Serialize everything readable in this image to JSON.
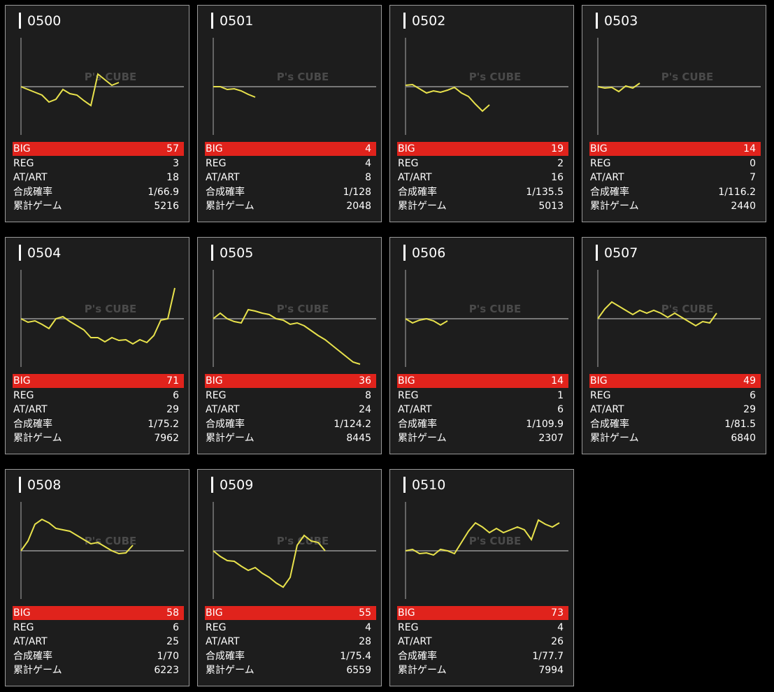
{
  "watermark": "P's CUBE",
  "labels": {
    "big": "BIG",
    "reg": "REG",
    "at": "AT/ART",
    "prob": "合成確率",
    "games": "累計ゲーム"
  },
  "machines": [
    {
      "id": "0500",
      "big": 57,
      "reg": 3,
      "at": 18,
      "prob": "1/66.9",
      "games": 5216,
      "graph": [
        0,
        -4,
        -8,
        -12,
        -22,
        -18,
        -4,
        -10,
        -12,
        -20,
        -27,
        18,
        10,
        2,
        6
      ]
    },
    {
      "id": "0501",
      "big": 4,
      "reg": 4,
      "at": 8,
      "prob": "1/128",
      "games": 2048,
      "graph": [
        0,
        0,
        -4,
        -3,
        -6,
        -11,
        -15
      ]
    },
    {
      "id": "0502",
      "big": 19,
      "reg": 2,
      "at": 16,
      "prob": "1/135.5",
      "games": 5013,
      "graph": [
        2,
        3,
        -3,
        -9,
        -6,
        -8,
        -5,
        -1,
        -9,
        -14,
        -25,
        -35,
        -26
      ]
    },
    {
      "id": "0503",
      "big": 14,
      "reg": 0,
      "at": 7,
      "prob": "1/116.2",
      "games": 2440,
      "graph": [
        0,
        -2,
        -1,
        -7,
        1,
        -2,
        5
      ]
    },
    {
      "id": "0504",
      "big": 71,
      "reg": 6,
      "at": 29,
      "prob": "1/75.2",
      "games": 7962,
      "graph": [
        0,
        -5,
        -3,
        -8,
        -14,
        0,
        3,
        -4,
        -10,
        -16,
        -27,
        -27,
        -33,
        -27,
        -31,
        -30,
        -36,
        -30,
        -34,
        -24,
        -2,
        0,
        44
      ]
    },
    {
      "id": "0505",
      "big": 36,
      "reg": 8,
      "at": 24,
      "prob": "1/124.2",
      "games": 8445,
      "graph": [
        0,
        8,
        0,
        -4,
        -6,
        13,
        11,
        8,
        6,
        0,
        -2,
        -8,
        -6,
        -10,
        -17,
        -24,
        -30,
        -38,
        -46,
        -54,
        -62,
        -65
      ]
    },
    {
      "id": "0506",
      "big": 14,
      "reg": 1,
      "at": 6,
      "prob": "1/109.9",
      "games": 2307,
      "graph": [
        0,
        -6,
        -2,
        0,
        -3,
        -9,
        -3
      ]
    },
    {
      "id": "0507",
      "big": 49,
      "reg": 6,
      "at": 29,
      "prob": "1/81.5",
      "games": 6840,
      "graph": [
        0,
        14,
        24,
        18,
        12,
        6,
        12,
        8,
        12,
        8,
        2,
        8,
        2,
        -4,
        -10,
        -4,
        -6,
        8
      ]
    },
    {
      "id": "0508",
      "big": 58,
      "reg": 6,
      "at": 25,
      "prob": "1/70",
      "games": 6223,
      "graph": [
        0,
        14,
        38,
        45,
        40,
        32,
        30,
        28,
        22,
        16,
        10,
        12,
        6,
        0,
        -4,
        -3,
        8
      ]
    },
    {
      "id": "0509",
      "big": 55,
      "reg": 4,
      "at": 28,
      "prob": "1/75.4",
      "games": 6559,
      "graph": [
        0,
        -8,
        -14,
        -15,
        -22,
        -28,
        -24,
        -32,
        -38,
        -46,
        -52,
        -38,
        8,
        22,
        14,
        12,
        0
      ]
    },
    {
      "id": "0510",
      "big": 73,
      "reg": 4,
      "at": 26,
      "prob": "1/77.7",
      "games": 7994,
      "graph": [
        0,
        2,
        -4,
        -3,
        -6,
        2,
        0,
        -4,
        12,
        28,
        40,
        34,
        26,
        32,
        26,
        30,
        34,
        30,
        16,
        44,
        38,
        34,
        40
      ]
    }
  ]
}
